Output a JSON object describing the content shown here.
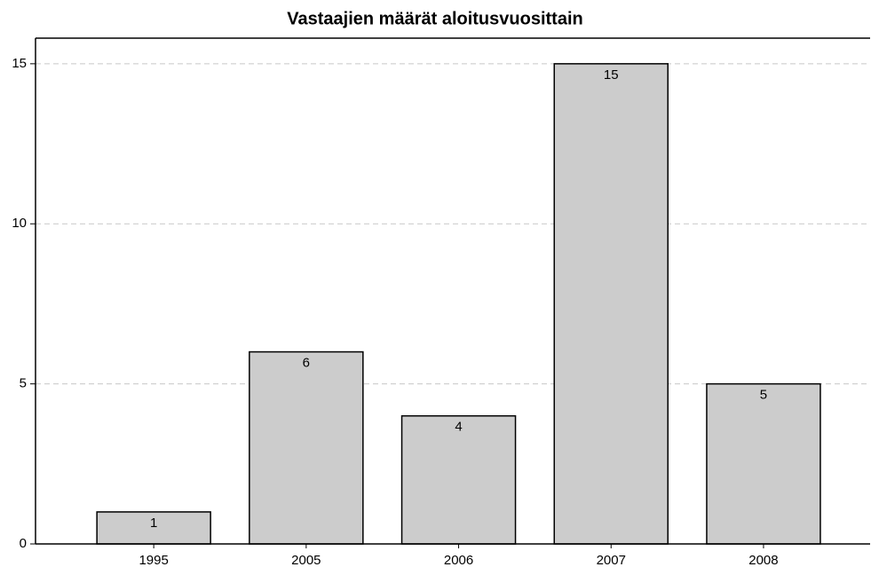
{
  "chart_data": {
    "type": "bar",
    "title": "Vastaajien määrät aloitusvuosittain",
    "categories": [
      "1995",
      "2005",
      "2006",
      "2007",
      "2008"
    ],
    "values": [
      1,
      6,
      4,
      15,
      5
    ],
    "color": "#cccccc",
    "ylim": [
      0,
      15.8
    ],
    "yticks": [
      0,
      5,
      10,
      15
    ],
    "grid": true
  }
}
